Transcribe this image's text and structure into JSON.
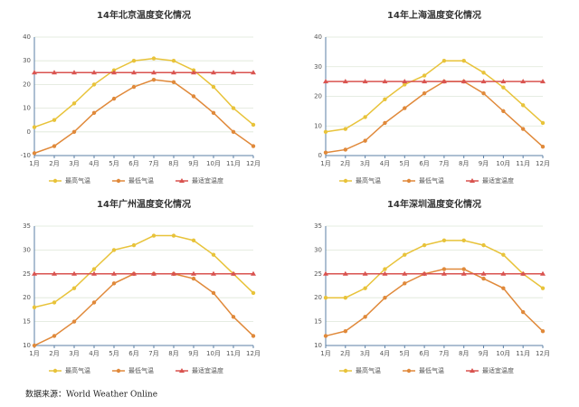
{
  "chart_data": [
    {
      "type": "line",
      "title": "14年北京温度变化情况",
      "categories": [
        "1月",
        "2月",
        "3月",
        "4月",
        "5月",
        "6月",
        "7月",
        "8月",
        "9月",
        "10月",
        "11月",
        "12月"
      ],
      "ylim": [
        -10,
        40
      ],
      "yticks": [
        -10,
        0,
        10,
        20,
        30,
        40
      ],
      "grid": true,
      "series": [
        {
          "name": "最高气温",
          "color": "#e8c33a",
          "marker": "circle",
          "values": [
            2,
            5,
            12,
            20,
            26,
            30,
            31,
            30,
            26,
            19,
            10,
            3
          ]
        },
        {
          "name": "最低气温",
          "color": "#e0893a",
          "marker": "circle",
          "values": [
            -9,
            -6,
            0,
            8,
            14,
            19,
            22,
            21,
            15,
            8,
            0,
            -6
          ]
        },
        {
          "name": "最适宜温度",
          "color": "#d9534f",
          "marker": "triangle",
          "values": [
            25,
            25,
            25,
            25,
            25,
            25,
            25,
            25,
            25,
            25,
            25,
            25
          ]
        }
      ]
    },
    {
      "type": "line",
      "title": "14年上海温度变化情况",
      "categories": [
        "1月",
        "2月",
        "3月",
        "4月",
        "5月",
        "6月",
        "7月",
        "8月",
        "9月",
        "10月",
        "11月",
        "12月"
      ],
      "ylim": [
        0,
        40
      ],
      "yticks": [
        0,
        10,
        20,
        30,
        40
      ],
      "grid": true,
      "series": [
        {
          "name": "最高气温",
          "color": "#e8c33a",
          "marker": "circle",
          "values": [
            8,
            9,
            13,
            19,
            24,
            27,
            32,
            32,
            28,
            23,
            17,
            11
          ]
        },
        {
          "name": "最低气温",
          "color": "#e0893a",
          "marker": "circle",
          "values": [
            1,
            2,
            5,
            11,
            16,
            21,
            25,
            25,
            21,
            15,
            9,
            3
          ]
        },
        {
          "name": "最适宜温度",
          "color": "#d9534f",
          "marker": "triangle",
          "values": [
            25,
            25,
            25,
            25,
            25,
            25,
            25,
            25,
            25,
            25,
            25,
            25
          ]
        }
      ]
    },
    {
      "type": "line",
      "title": "14年广州温度变化情况",
      "categories": [
        "1月",
        "2月",
        "3月",
        "4月",
        "5月",
        "6月",
        "7月",
        "8月",
        "9月",
        "10月",
        "11月",
        "12月"
      ],
      "ylim": [
        10,
        35
      ],
      "yticks": [
        10,
        15,
        20,
        25,
        30,
        35
      ],
      "grid": true,
      "series": [
        {
          "name": "最高气温",
          "color": "#e8c33a",
          "marker": "circle",
          "values": [
            18,
            19,
            22,
            26,
            30,
            31,
            33,
            33,
            32,
            29,
            25,
            21
          ]
        },
        {
          "name": "最低气温",
          "color": "#e0893a",
          "marker": "circle",
          "values": [
            10,
            12,
            15,
            19,
            23,
            25,
            25,
            25,
            24,
            21,
            16,
            12
          ]
        },
        {
          "name": "最适宜温度",
          "color": "#d9534f",
          "marker": "triangle",
          "values": [
            25,
            25,
            25,
            25,
            25,
            25,
            25,
            25,
            25,
            25,
            25,
            25
          ]
        }
      ]
    },
    {
      "type": "line",
      "title": "14年深圳温度变化情况",
      "categories": [
        "1月",
        "2月",
        "3月",
        "4月",
        "5月",
        "6月",
        "7月",
        "8月",
        "9月",
        "10月",
        "11月",
        "12月"
      ],
      "ylim": [
        10,
        35
      ],
      "yticks": [
        10,
        15,
        20,
        25,
        30,
        35
      ],
      "grid": true,
      "series": [
        {
          "name": "最高气温",
          "color": "#e8c33a",
          "marker": "circle",
          "values": [
            20,
            20,
            22,
            26,
            29,
            31,
            32,
            32,
            31,
            29,
            25,
            22
          ]
        },
        {
          "name": "最低气温",
          "color": "#e0893a",
          "marker": "circle",
          "values": [
            12,
            13,
            16,
            20,
            23,
            25,
            26,
            26,
            24,
            22,
            17,
            13
          ]
        },
        {
          "name": "最适宜温度",
          "color": "#d9534f",
          "marker": "triangle",
          "values": [
            25,
            25,
            25,
            25,
            25,
            25,
            25,
            25,
            25,
            25,
            25,
            25
          ]
        }
      ]
    }
  ],
  "source": "数据来源：World Weather Online"
}
